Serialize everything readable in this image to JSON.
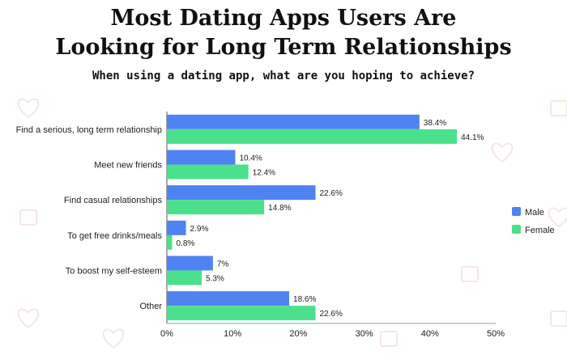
{
  "header": {
    "title_line1": "Most Dating Apps Users Are",
    "title_line2": "Looking for Long Term Relationships",
    "subtitle": "When using a dating app, what are you hoping to achieve?"
  },
  "colors": {
    "male": "#4f83f1",
    "female": "#4be08c",
    "background_pattern": "#f6e6e6"
  },
  "chart_data": {
    "type": "bar",
    "orientation": "horizontal",
    "categories": [
      "Find a serious, long term relationship",
      "Meet new friends",
      "Find casual relationships",
      "To get free drinks/meals",
      "To boost my self-esteem",
      "Other"
    ],
    "series": [
      {
        "name": "Male",
        "values": [
          38.4,
          10.4,
          22.6,
          2.9,
          7,
          18.6
        ],
        "labels": [
          "38.4%",
          "10.4%",
          "22.6%",
          "2.9%",
          "7%",
          "18.6%"
        ]
      },
      {
        "name": "Female",
        "values": [
          44.1,
          12.4,
          14.8,
          0.8,
          5.3,
          22.6
        ],
        "labels": [
          "44.1%",
          "12.4%",
          "14.8%",
          "0.8%",
          "5.3%",
          "22.6%"
        ]
      }
    ],
    "x_ticks": [
      "0%",
      "10%",
      "20%",
      "30%",
      "40%",
      "50%"
    ],
    "xlim": [
      0,
      50
    ],
    "grid": false,
    "legend": "right"
  }
}
